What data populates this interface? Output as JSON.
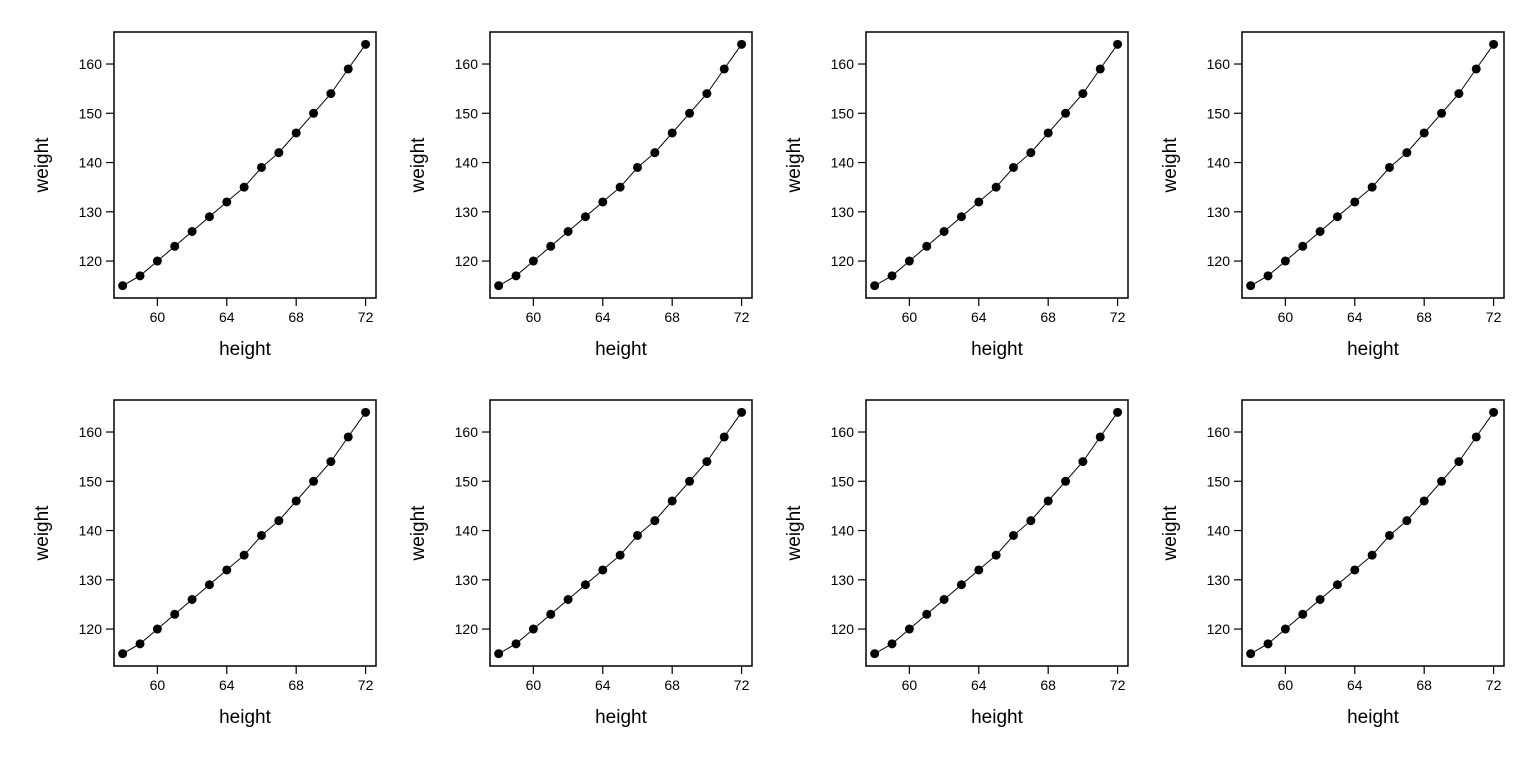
{
  "colors": {
    "background": "#ffffff",
    "axes": "#000000",
    "series": "#000000"
  },
  "chart_data": [
    {
      "type": "line",
      "xlabel": "height",
      "ylabel": "weight",
      "xlim": [
        57.5,
        72.6
      ],
      "ylim": [
        112.5,
        166.5
      ],
      "xticks": [
        60,
        64,
        68,
        72
      ],
      "yticks": [
        120,
        130,
        140,
        150,
        160
      ],
      "marker": "circle",
      "grid": false,
      "x": [
        58,
        59,
        60,
        61,
        62,
        63,
        64,
        65,
        66,
        67,
        68,
        69,
        70,
        71,
        72
      ],
      "y": [
        115,
        117,
        120,
        123,
        126,
        129,
        132,
        135,
        139,
        142,
        146,
        150,
        154,
        159,
        164
      ]
    },
    {
      "type": "line",
      "xlabel": "height",
      "ylabel": "weight",
      "xlim": [
        57.5,
        72.6
      ],
      "ylim": [
        112.5,
        166.5
      ],
      "xticks": [
        60,
        64,
        68,
        72
      ],
      "yticks": [
        120,
        130,
        140,
        150,
        160
      ],
      "marker": "circle",
      "grid": false,
      "x": [
        58,
        59,
        60,
        61,
        62,
        63,
        64,
        65,
        66,
        67,
        68,
        69,
        70,
        71,
        72
      ],
      "y": [
        115,
        117,
        120,
        123,
        126,
        129,
        132,
        135,
        139,
        142,
        146,
        150,
        154,
        159,
        164
      ]
    },
    {
      "type": "line",
      "xlabel": "height",
      "ylabel": "weight",
      "xlim": [
        57.5,
        72.6
      ],
      "ylim": [
        112.5,
        166.5
      ],
      "xticks": [
        60,
        64,
        68,
        72
      ],
      "yticks": [
        120,
        130,
        140,
        150,
        160
      ],
      "marker": "circle",
      "grid": false,
      "x": [
        58,
        59,
        60,
        61,
        62,
        63,
        64,
        65,
        66,
        67,
        68,
        69,
        70,
        71,
        72
      ],
      "y": [
        115,
        117,
        120,
        123,
        126,
        129,
        132,
        135,
        139,
        142,
        146,
        150,
        154,
        159,
        164
      ]
    },
    {
      "type": "line",
      "xlabel": "height",
      "ylabel": "weight",
      "xlim": [
        57.5,
        72.6
      ],
      "ylim": [
        112.5,
        166.5
      ],
      "xticks": [
        60,
        64,
        68,
        72
      ],
      "yticks": [
        120,
        130,
        140,
        150,
        160
      ],
      "marker": "circle",
      "grid": false,
      "x": [
        58,
        59,
        60,
        61,
        62,
        63,
        64,
        65,
        66,
        67,
        68,
        69,
        70,
        71,
        72
      ],
      "y": [
        115,
        117,
        120,
        123,
        126,
        129,
        132,
        135,
        139,
        142,
        146,
        150,
        154,
        159,
        164
      ]
    },
    {
      "type": "line",
      "xlabel": "height",
      "ylabel": "weight",
      "xlim": [
        57.5,
        72.6
      ],
      "ylim": [
        112.5,
        166.5
      ],
      "xticks": [
        60,
        64,
        68,
        72
      ],
      "yticks": [
        120,
        130,
        140,
        150,
        160
      ],
      "marker": "circle",
      "grid": false,
      "x": [
        58,
        59,
        60,
        61,
        62,
        63,
        64,
        65,
        66,
        67,
        68,
        69,
        70,
        71,
        72
      ],
      "y": [
        115,
        117,
        120,
        123,
        126,
        129,
        132,
        135,
        139,
        142,
        146,
        150,
        154,
        159,
        164
      ]
    },
    {
      "type": "line",
      "xlabel": "height",
      "ylabel": "weight",
      "xlim": [
        57.5,
        72.6
      ],
      "ylim": [
        112.5,
        166.5
      ],
      "xticks": [
        60,
        64,
        68,
        72
      ],
      "yticks": [
        120,
        130,
        140,
        150,
        160
      ],
      "marker": "circle",
      "grid": false,
      "x": [
        58,
        59,
        60,
        61,
        62,
        63,
        64,
        65,
        66,
        67,
        68,
        69,
        70,
        71,
        72
      ],
      "y": [
        115,
        117,
        120,
        123,
        126,
        129,
        132,
        135,
        139,
        142,
        146,
        150,
        154,
        159,
        164
      ]
    },
    {
      "type": "line",
      "xlabel": "height",
      "ylabel": "weight",
      "xlim": [
        57.5,
        72.6
      ],
      "ylim": [
        112.5,
        166.5
      ],
      "xticks": [
        60,
        64,
        68,
        72
      ],
      "yticks": [
        120,
        130,
        140,
        150,
        160
      ],
      "marker": "circle",
      "grid": false,
      "x": [
        58,
        59,
        60,
        61,
        62,
        63,
        64,
        65,
        66,
        67,
        68,
        69,
        70,
        71,
        72
      ],
      "y": [
        115,
        117,
        120,
        123,
        126,
        129,
        132,
        135,
        139,
        142,
        146,
        150,
        154,
        159,
        164
      ]
    },
    {
      "type": "line",
      "xlabel": "height",
      "ylabel": "weight",
      "xlim": [
        57.5,
        72.6
      ],
      "ylim": [
        112.5,
        166.5
      ],
      "xticks": [
        60,
        64,
        68,
        72
      ],
      "yticks": [
        120,
        130,
        140,
        150,
        160
      ],
      "marker": "circle",
      "grid": false,
      "x": [
        58,
        59,
        60,
        61,
        62,
        63,
        64,
        65,
        66,
        67,
        68,
        69,
        70,
        71,
        72
      ],
      "y": [
        115,
        117,
        120,
        123,
        126,
        129,
        132,
        135,
        139,
        142,
        146,
        150,
        154,
        159,
        164
      ]
    }
  ]
}
